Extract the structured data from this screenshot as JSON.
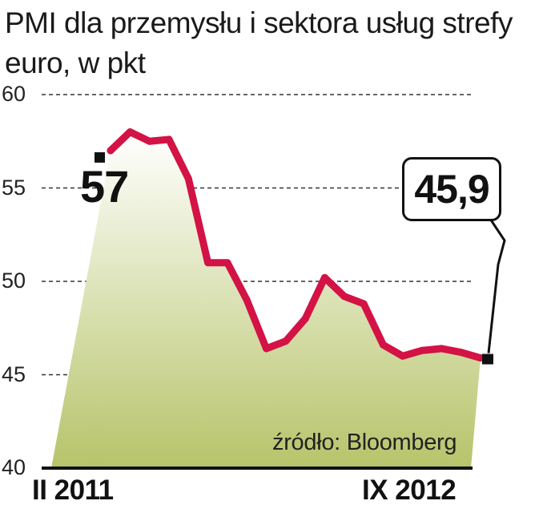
{
  "chart_data": {
    "type": "area",
    "title": "PMI dla przemysłu i sektora usług strefy euro, w pkt",
    "x_start_label": "II 2011",
    "x_end_label": "IX 2012",
    "ylim": [
      40,
      60
    ],
    "yticks": [
      60,
      55,
      50,
      45,
      40
    ],
    "grid": "dashed horizontal",
    "series": [
      {
        "values": [
          57.0,
          58.0,
          57.5,
          57.6,
          55.5,
          51.0,
          51.0,
          49.0,
          46.4,
          46.8,
          48.0,
          50.2,
          49.2,
          48.8,
          46.6,
          46.0,
          46.3,
          46.4,
          46.2,
          45.9
        ]
      }
    ],
    "annotations": {
      "start_value": "57",
      "end_value": "45,9"
    },
    "source": "źródło: Bloomberg",
    "colors": {
      "line": "#d31245",
      "fill_top": "#ffffff",
      "fill_bottom": "#b7c46a",
      "grid": "#333333"
    }
  }
}
